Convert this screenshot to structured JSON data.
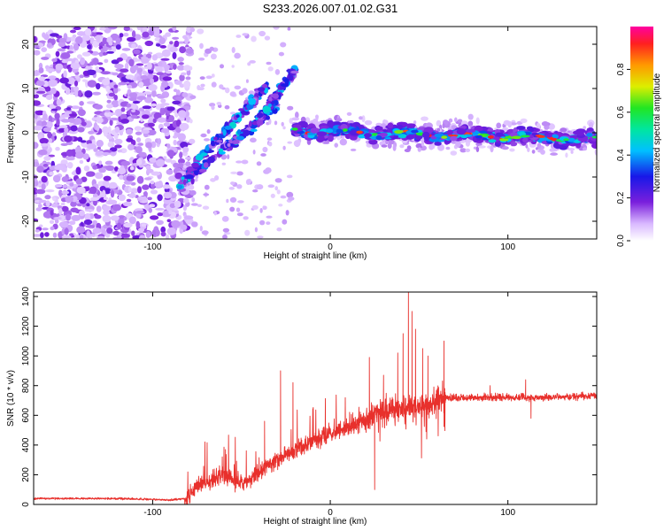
{
  "title": "S233.2026.007.01.02.G31",
  "chart_data": [
    {
      "type": "heatmap",
      "name": "spectrogram",
      "xlabel": "Height of straight line (km)",
      "ylabel": "Frequency (Hz)",
      "xlim": [
        -167,
        150
      ],
      "ylim": [
        -24,
        24
      ],
      "xticks": [
        -100,
        0,
        100
      ],
      "yticks": [
        -20,
        -10,
        0,
        10,
        20
      ],
      "colorbar": {
        "label": "Normalized spectral amplitude",
        "range": [
          0,
          1
        ],
        "ticks": [
          "0.0",
          "0.2",
          "0.4",
          "0.6",
          "0.8"
        ],
        "tick_values": [
          0.0,
          0.2,
          0.4,
          0.6,
          0.8
        ]
      },
      "features": {
        "noise_region_x": [
          -167,
          -82
        ],
        "diagonal_tracks": [
          {
            "x": [
              -85,
              -30
            ],
            "y": [
              -12,
              6
            ]
          },
          {
            "x": [
              -80,
              -35
            ],
            "y": [
              -9,
              11
            ]
          },
          {
            "x": [
              -40,
              -20
            ],
            "y": [
              3,
              14
            ]
          }
        ],
        "main_line": {
          "x": [
            -20,
            150
          ],
          "y": [
            0.5,
            -1.5
          ]
        },
        "peak_value": 0.95
      }
    },
    {
      "type": "line",
      "name": "snr",
      "xlabel": "Height of straight line (km)",
      "ylabel": "SNR (10 * v/v)",
      "xlim": [
        -167,
        150
      ],
      "ylim": [
        0,
        1430
      ],
      "xticks": [
        -100,
        0,
        100
      ],
      "yticks": [
        0,
        200,
        400,
        600,
        800,
        1000,
        1200,
        1400
      ],
      "color": "#e8302c",
      "envelope": {
        "x": [
          -167,
          -120,
          -90,
          -82,
          -75,
          -65,
          -60,
          -55,
          -50,
          -45,
          -40,
          -35,
          -30,
          -25,
          -20,
          -15,
          -10,
          -5,
          0,
          10,
          20,
          23,
          25,
          30,
          35,
          40,
          45,
          50,
          55,
          60,
          65,
          70,
          80,
          90,
          100,
          120,
          150
        ],
        "y": [
          40,
          40,
          30,
          40,
          110,
          170,
          190,
          160,
          140,
          170,
          220,
          270,
          300,
          330,
          360,
          390,
          420,
          450,
          480,
          520,
          560,
          580,
          600,
          620,
          640,
          650,
          660,
          670,
          680,
          700,
          720,
          720,
          720,
          720,
          720,
          720,
          730
        ]
      },
      "spikes": [
        {
          "x": -59,
          "y": 370
        },
        {
          "x": -37,
          "y": 560
        },
        {
          "x": -28,
          "y": 900
        },
        {
          "x": -21,
          "y": 820
        },
        {
          "x": 22,
          "y": 990
        },
        {
          "x": 25,
          "y": 100
        },
        {
          "x": 30,
          "y": 870
        },
        {
          "x": 38,
          "y": 1020
        },
        {
          "x": 41,
          "y": 1150
        },
        {
          "x": 44,
          "y": 1430
        },
        {
          "x": 46,
          "y": 1300
        },
        {
          "x": 48,
          "y": 1180
        },
        {
          "x": 52,
          "y": 1050
        },
        {
          "x": 55,
          "y": 1000
        },
        {
          "x": 64,
          "y": 1100
        },
        {
          "x": 90,
          "y": 800
        },
        {
          "x": 110,
          "y": 840
        },
        {
          "x": 113,
          "y": 580
        }
      ]
    }
  ]
}
